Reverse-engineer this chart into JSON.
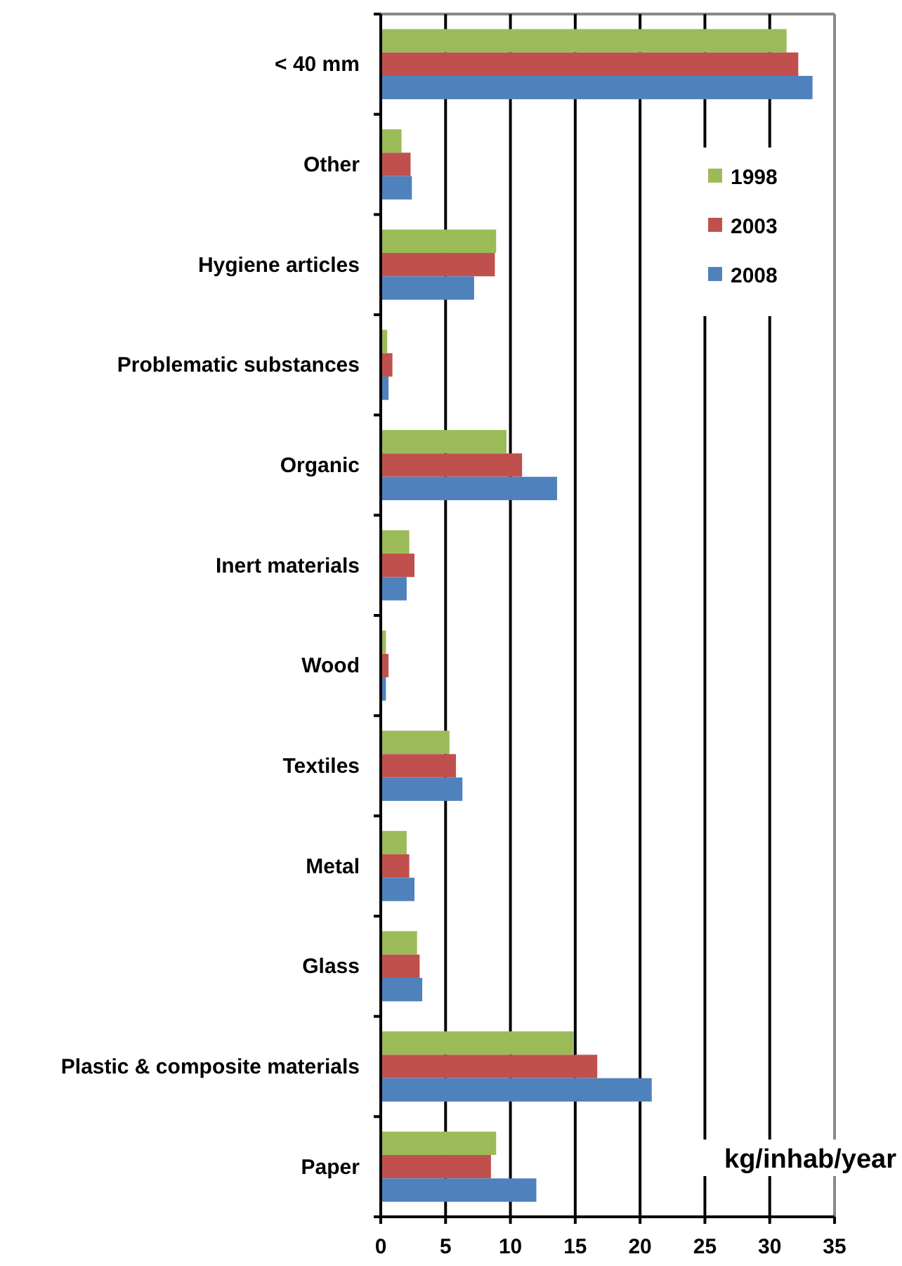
{
  "chart_data": {
    "type": "bar",
    "orientation": "horizontal",
    "xlabel": "kg/inhab/year",
    "categories": [
      "< 40 mm",
      "Other",
      "Hygiene articles",
      "Problematic substances",
      "Organic",
      "Inert materials",
      "Wood",
      "Textiles",
      "Metal",
      "Glass",
      "Plastic & composite materials",
      "Paper"
    ],
    "series": [
      {
        "name": "1998",
        "color": "#9bbb59",
        "values": [
          31.3,
          1.6,
          8.9,
          0.5,
          9.7,
          2.2,
          0.4,
          5.3,
          2.0,
          2.8,
          14.9,
          8.9
        ]
      },
      {
        "name": "2003",
        "color": "#c0504d",
        "values": [
          32.2,
          2.3,
          8.8,
          0.9,
          10.9,
          2.6,
          0.6,
          5.8,
          2.2,
          3.0,
          16.7,
          8.5
        ]
      },
      {
        "name": "2008",
        "color": "#4f81bd",
        "values": [
          33.3,
          2.4,
          7.2,
          0.6,
          13.6,
          2.0,
          0.4,
          6.3,
          2.6,
          3.2,
          20.9,
          12.0
        ]
      }
    ],
    "xlim": [
      0,
      35
    ],
    "xticks": [
      0,
      5,
      10,
      15,
      20,
      25,
      30,
      35
    ],
    "grid": "x",
    "legend": "top right"
  }
}
